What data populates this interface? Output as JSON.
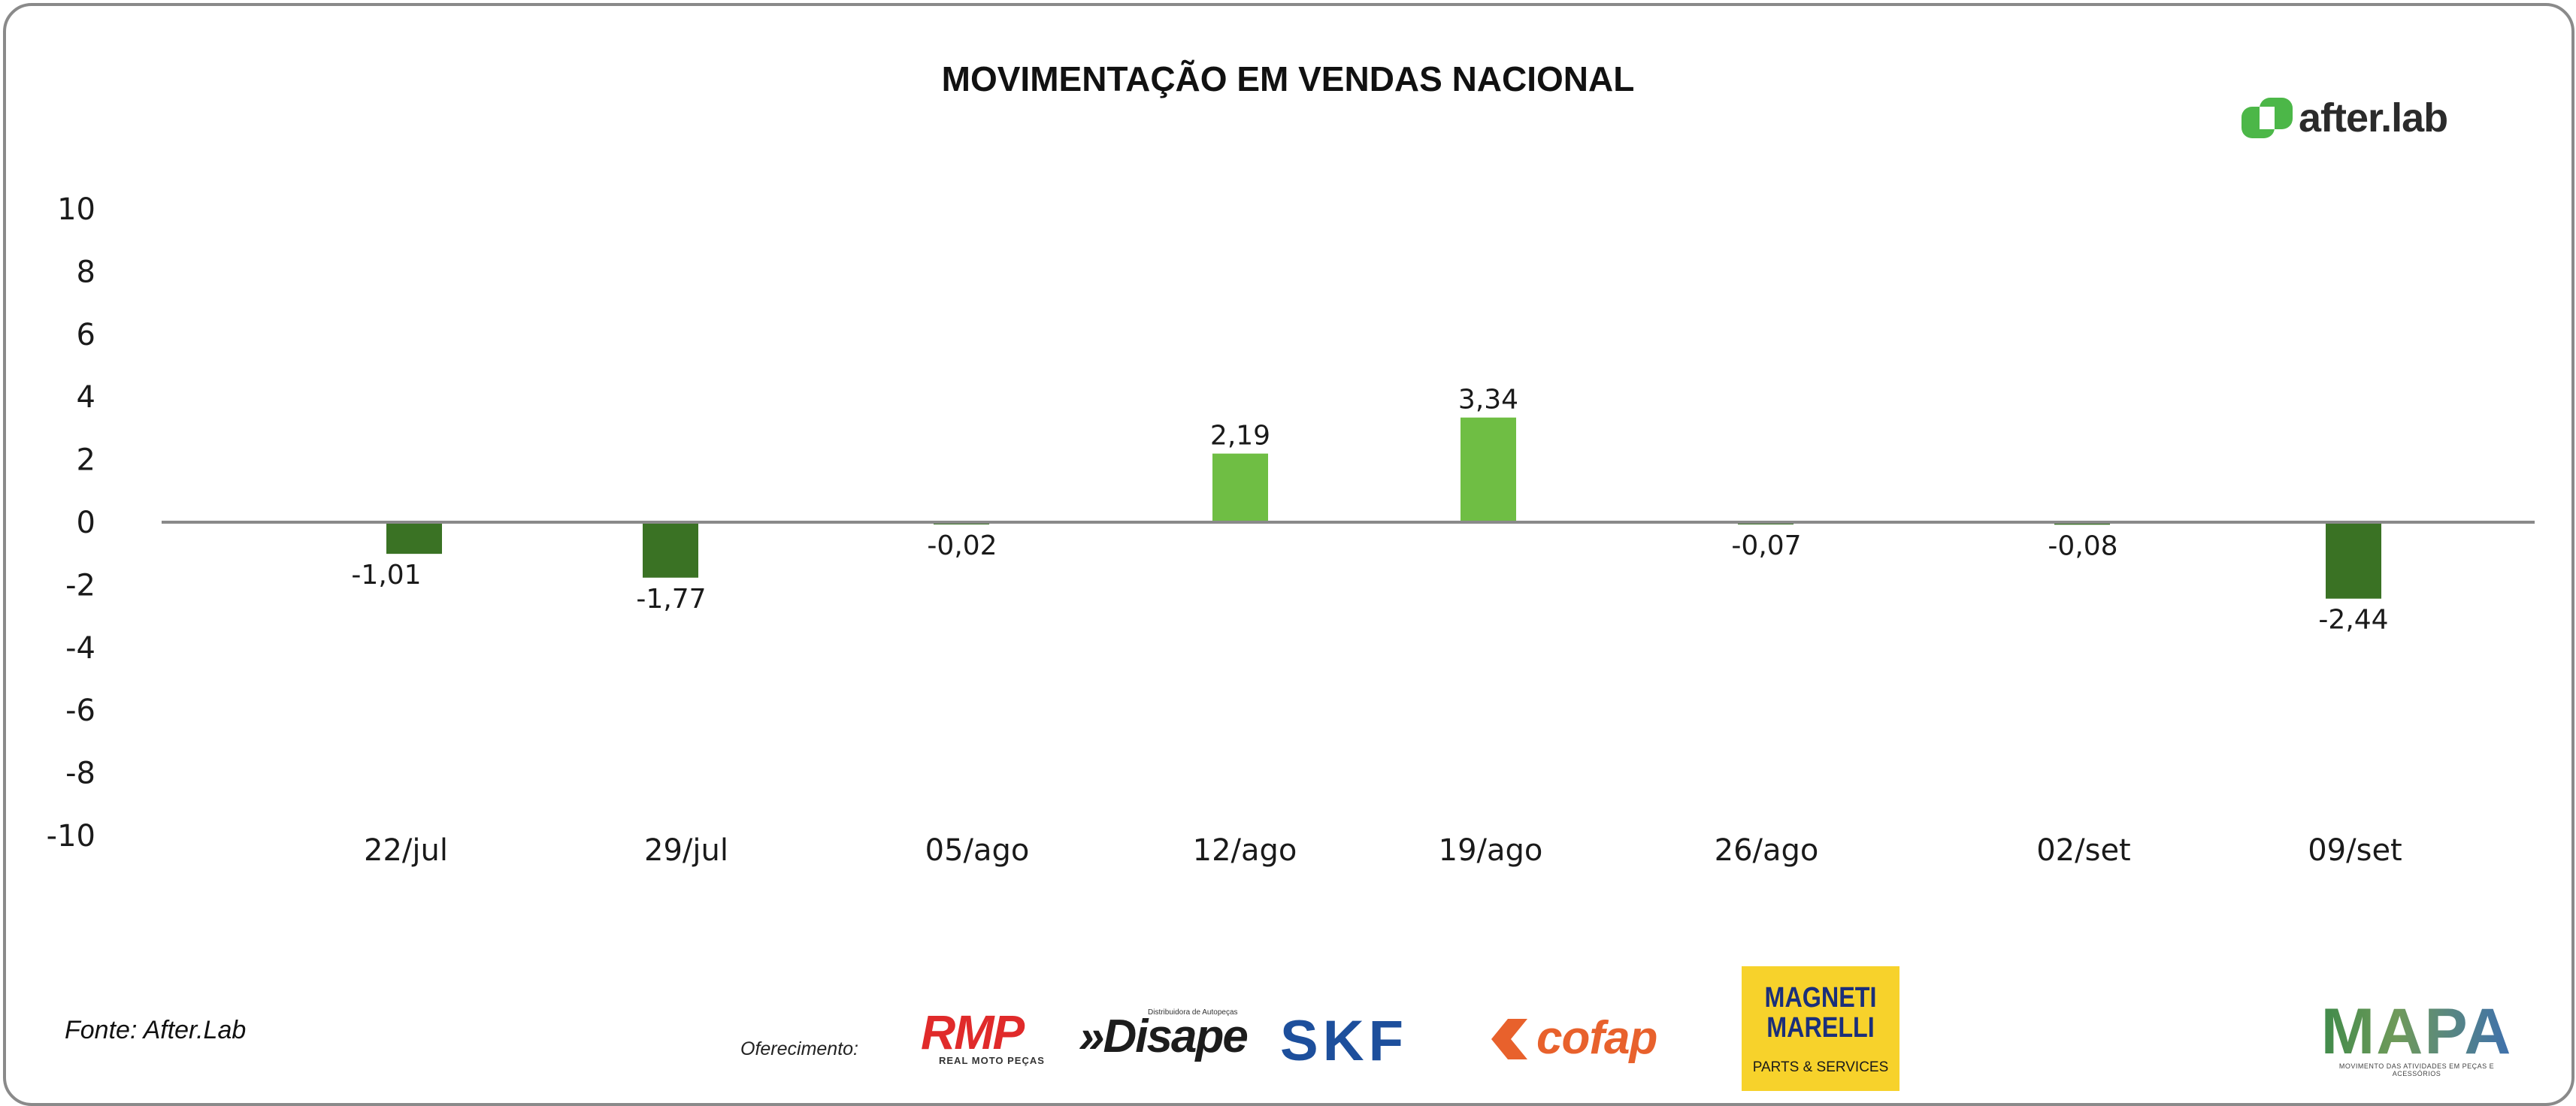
{
  "chart_data": {
    "type": "bar",
    "title": "MOVIMENTAÇÃO EM VENDAS NACIONAL",
    "xlabel": "",
    "ylabel": "",
    "categories": [
      "22/jul",
      "29/jul",
      "05/ago",
      "12/ago",
      "19/ago",
      "26/ago",
      "02/set",
      "09/set"
    ],
    "values": [
      -1.01,
      -1.77,
      -0.02,
      2.19,
      3.34,
      -0.07,
      -0.08,
      -2.44
    ],
    "value_labels": [
      "-1,01",
      "-1,77",
      "-0,02",
      "2,19",
      "3,34",
      "-0,07",
      "-0,08",
      "-2,44"
    ],
    "ylim": [
      -10,
      10
    ],
    "yticks": [
      "10",
      "8",
      "6",
      "4",
      "2",
      "0",
      "-2",
      "-4",
      "-6",
      "-8",
      "-10"
    ],
    "grid": false,
    "colors": {
      "positive": "#6fbe44",
      "negative": "#3a7224",
      "zero_line": "#8a8a8a"
    }
  },
  "branding": {
    "logo_text": "after.lab",
    "logo_icon": "afterlab-logo-icon",
    "logo_color": "#4cb748"
  },
  "footer": {
    "source": "Fonte: After.Lab",
    "offer_label": "Oferecimento:",
    "sponsors": {
      "rmp": {
        "name": "RMP",
        "sub": "REAL MOTO PEÇAS"
      },
      "disape": {
        "name": "»Disape",
        "sub": "Distribuidora de Autopeças"
      },
      "skf": {
        "name": "SKF"
      },
      "cofap": {
        "name": "cofap"
      },
      "magneti_marelli": {
        "name": "MAGNETI MARELLI",
        "sub": "PARTS & SERVICES"
      },
      "mapa": {
        "name": "MAPA",
        "sub": "MOVIMENTO DAS ATIVIDADES EM PEÇAS E ACESSÓRIOS"
      }
    }
  }
}
